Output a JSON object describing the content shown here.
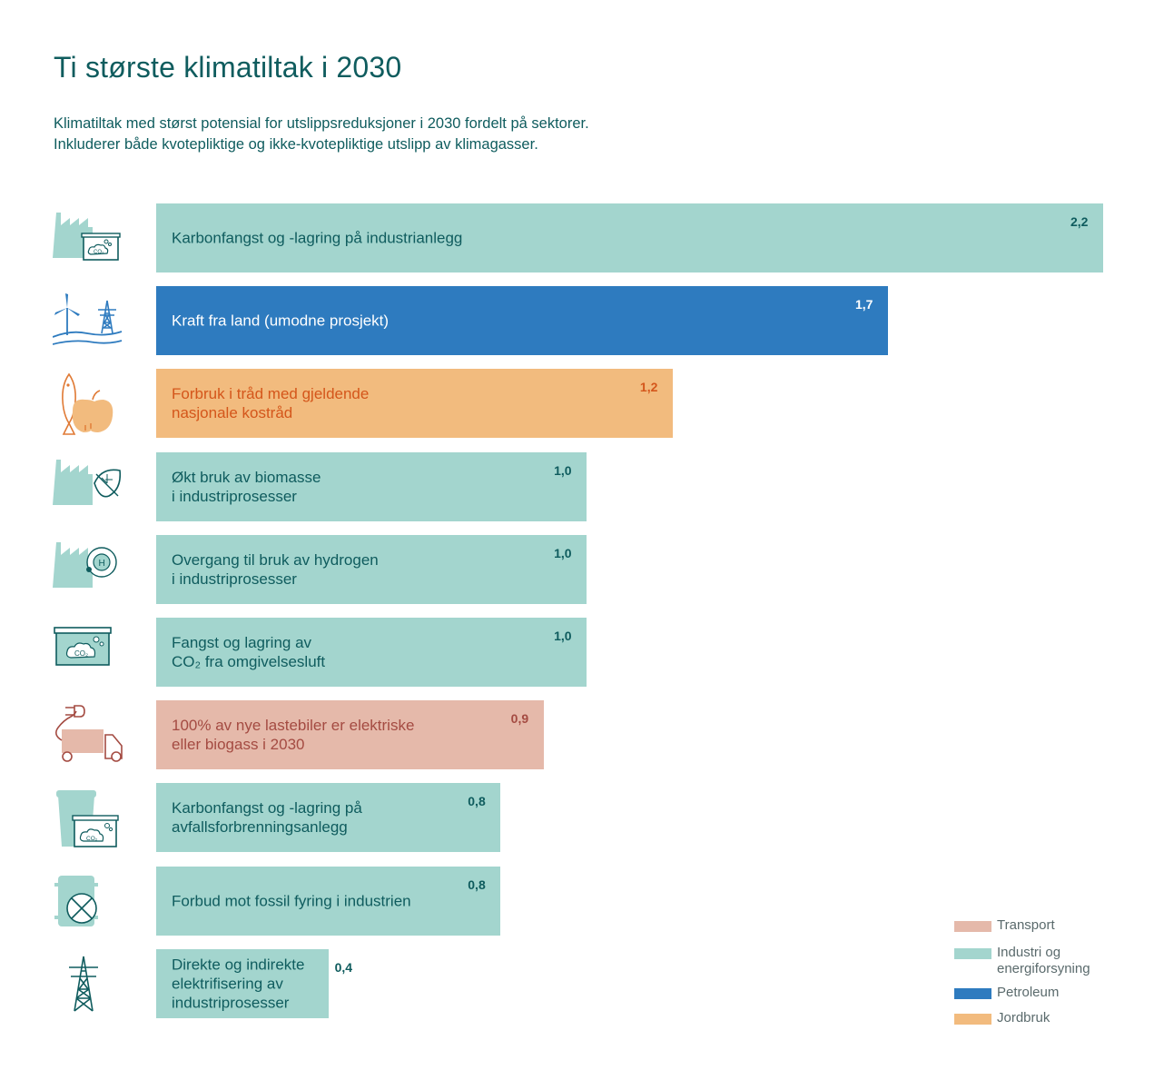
{
  "title": "Ti største klimatiltak i 2030",
  "subtitle": [
    "Klimatiltak med størst potensial for utslippsreduksjoner i 2030 fordelt på sektorer.",
    "Inkluderer både kvotepliktige og ikke-kvotepliktige utslipp av klimagasser."
  ],
  "colors": {
    "Transport": "#e5b9aa",
    "Industri og energiforsyning": "#a3d5ce",
    "Petroleum": "#2e7bbf",
    "Jordbruk": "#f2bb7e"
  },
  "text_colors": {
    "Transport": "#a44b42",
    "Industri og energiforsyning": "#0f5c5e",
    "Petroleum": "#ffffff",
    "Jordbruk": "#d4561b"
  },
  "chart_data": {
    "type": "bar",
    "orientation": "horizontal",
    "categories": [
      "Karbonfangst og -lagring på industrianlegg",
      "Kraft fra land (umodne prosjekt)",
      "Forbruk i tråd med gjeldende\nnasjonale kostråd",
      "Økt bruk av biomasse\ni industriprosesser",
      "Overgang til bruk av hydrogen\ni industriprosesser",
      "Fangst og lagring av\nCO₂ fra omgivelsesluft",
      "100% av nye lastebiler er elektriske\neller biogass i 2030",
      "Karbonfangst og -lagring på\navfallsforbrenningsanlegg",
      "Forbud mot fossil fyring i industrien",
      "Direkte og indirekte\nelektrifisering av\nindustriprosesser"
    ],
    "values": [
      2.2,
      1.7,
      1.2,
      1.0,
      1.0,
      1.0,
      0.9,
      0.8,
      0.8,
      0.4
    ],
    "value_labels": [
      "2,2",
      "1,7",
      "1,2",
      "1,0",
      "1,0",
      "1,0",
      "0,9",
      "0,8",
      "0,8",
      "0,4"
    ],
    "sectors": [
      "Industri og energiforsyning",
      "Petroleum",
      "Jordbruk",
      "Industri og energiforsyning",
      "Industri og energiforsyning",
      "Industri og energiforsyning",
      "Transport",
      "Industri og energiforsyning",
      "Industri og energiforsyning",
      "Industri og energiforsyning"
    ],
    "icons": [
      "factory-co2-icon",
      "wind-power-pylon-icon",
      "fish-apple-icon",
      "factory-leaf-icon",
      "factory-hydrogen-icon",
      "co2-capture-icon",
      "electric-truck-icon",
      "waste-bin-co2-icon",
      "oil-barrel-ban-icon",
      "power-pylon-icon"
    ],
    "legend": [
      {
        "label": "Transport",
        "sector": "Transport"
      },
      {
        "label": "Industri og\nenergiforsyning",
        "sector": "Industri og energiforsyning"
      },
      {
        "label": "Petroleum",
        "sector": "Petroleum"
      },
      {
        "label": "Jordbruk",
        "sector": "Jordbruk"
      }
    ],
    "xlim": [
      0,
      2.2
    ],
    "legend_position": "bottom-right",
    "xlabel": "",
    "ylabel": "",
    "grid": false
  }
}
